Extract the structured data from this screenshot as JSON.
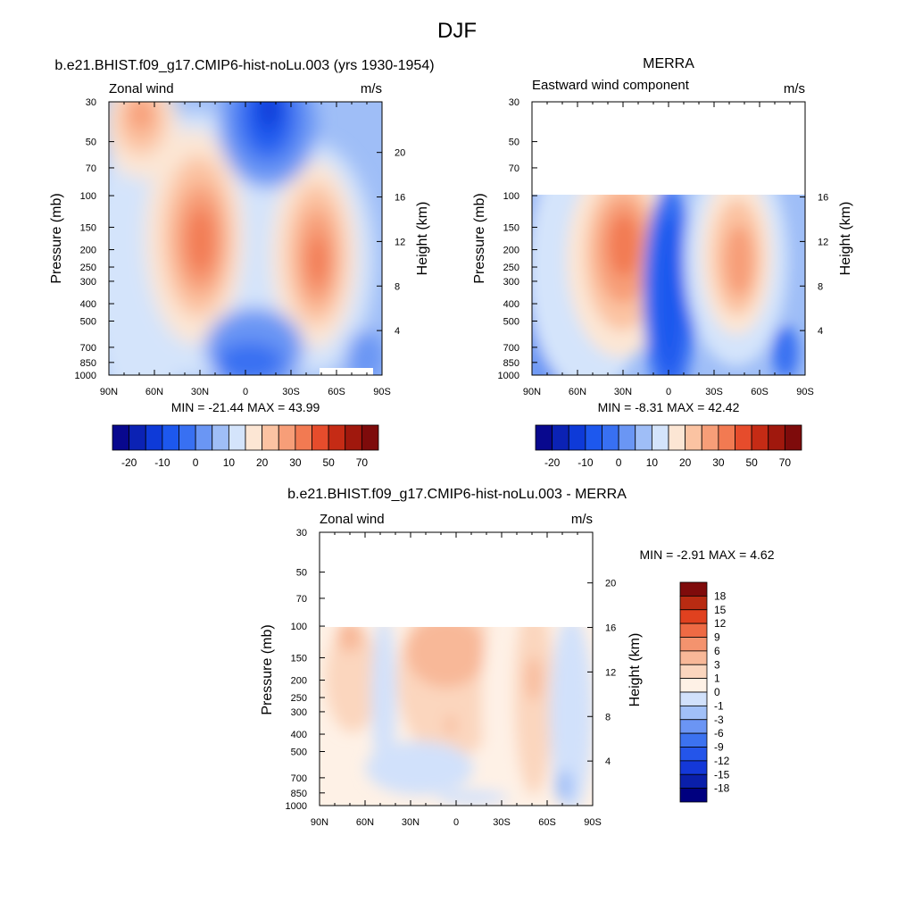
{
  "page_title": "DJF",
  "colors": {
    "abs_scale": [
      "#08088e",
      "#0b22b4",
      "#0e3ad8",
      "#1d58ee",
      "#3870f2",
      "#6a96f4",
      "#9fbef7",
      "#d4e4fb",
      "#fce6d4",
      "#fbc3a2",
      "#f79e78",
      "#f27a52",
      "#e64c2c",
      "#c52b15",
      "#a0180d",
      "#7e0b0b"
    ],
    "diff_scale": [
      "#00007f",
      "#0a1faa",
      "#1438d8",
      "#2455ea",
      "#3c72f0",
      "#6b95f4",
      "#a1c0f8",
      "#d1e1fb",
      "#fef1e6",
      "#fbd6be",
      "#f8b898",
      "#f4936e",
      "#ee6a44",
      "#e0411f",
      "#b92b12",
      "#7f0b0b"
    ]
  },
  "chart_data": [
    {
      "type": "heatmap",
      "title": "b.e21.BHIST.f09_g17.CMIP6-hist-noLu.003 (yrs 1930-1954)",
      "left_string": "Zonal wind",
      "right_string": "m/s",
      "ylabel": "Pressure (mb)",
      "ylabel_right": "Height (km)",
      "x_ticks": [
        "90N",
        "60N",
        "30N",
        "0",
        "30S",
        "60S",
        "90S"
      ],
      "y_ticks": [
        "30",
        "50",
        "70",
        "100",
        "150",
        "200",
        "250",
        "300",
        "400",
        "500",
        "700",
        "850",
        "1000"
      ],
      "y_ticks_right": [
        "20",
        "16",
        "12",
        "8",
        "4"
      ],
      "ylim": [
        1000,
        30
      ],
      "stats": "MIN = -21.44  MAX =  43.99",
      "levels": [
        -25,
        -20,
        -15,
        -10,
        -5,
        0,
        5,
        10,
        15,
        20,
        25,
        30,
        40,
        50,
        60,
        70
      ],
      "colorbar_labels": [
        "-20",
        "-10",
        "0",
        "10",
        "20",
        "30",
        "50",
        "70"
      ]
    },
    {
      "type": "heatmap",
      "title": "MERRA",
      "left_string": "Eastward wind component",
      "right_string": "m/s",
      "ylabel": "Pressure (mb)",
      "ylabel_right": "Height (km)",
      "x_ticks": [
        "90N",
        "60N",
        "30N",
        "0",
        "30S",
        "60S",
        "90S"
      ],
      "y_ticks": [
        "30",
        "50",
        "70",
        "100",
        "150",
        "200",
        "250",
        "300",
        "400",
        "500",
        "700",
        "850",
        "1000"
      ],
      "y_ticks_right": [
        "16",
        "12",
        "8",
        "4"
      ],
      "ylim": [
        1000,
        30
      ],
      "data_top_mb": 100,
      "stats": "MIN = -8.31  MAX = 42.42",
      "levels": [
        -25,
        -20,
        -15,
        -10,
        -5,
        0,
        5,
        10,
        15,
        20,
        25,
        30,
        40,
        50,
        60,
        70
      ],
      "colorbar_labels": [
        "-20",
        "-10",
        "0",
        "10",
        "20",
        "30",
        "50",
        "70"
      ]
    },
    {
      "type": "heatmap",
      "title": "b.e21.BHIST.f09_g17.CMIP6-hist-noLu.003 - MERRA",
      "left_string": "Zonal wind",
      "right_string": "m/s",
      "ylabel": "Pressure (mb)",
      "ylabel_right": "Height (km)",
      "x_ticks": [
        "90N",
        "60N",
        "30N",
        "0",
        "30S",
        "60S",
        "90S"
      ],
      "y_ticks": [
        "30",
        "50",
        "70",
        "100",
        "150",
        "200",
        "250",
        "300",
        "400",
        "500",
        "700",
        "850",
        "1000"
      ],
      "y_ticks_right": [
        "20",
        "16",
        "12",
        "8",
        "4"
      ],
      "ylim": [
        1000,
        30
      ],
      "data_top_mb": 100,
      "stats": "MIN =  -2.91  MAX =   4.62",
      "levels": [
        -18,
        -15,
        -12,
        -9,
        -6,
        -3,
        -1,
        0,
        1,
        3,
        6,
        9,
        12,
        15,
        18
      ],
      "colorbar_labels": [
        "18",
        "15",
        "12",
        "9",
        "6",
        "3",
        "1",
        "0",
        "-1",
        "-3",
        "-6",
        "-9",
        "-12",
        "-15",
        "-18"
      ]
    }
  ]
}
